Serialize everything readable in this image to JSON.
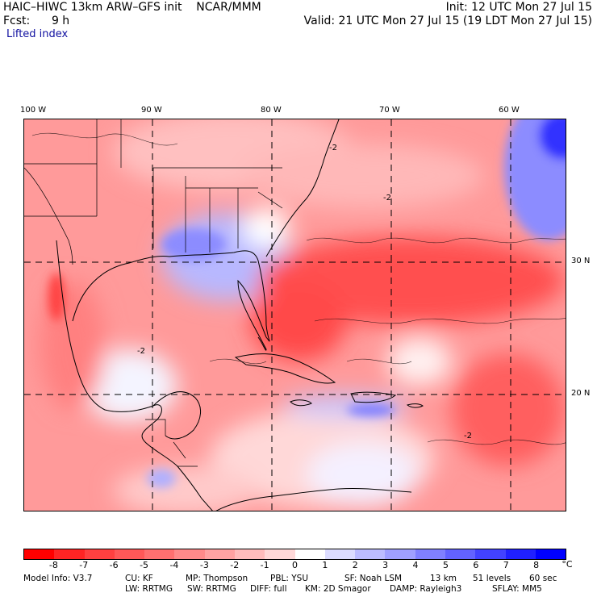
{
  "header": {
    "line1_left": "HAIC–HIWC 13km ARW–GFS init    NCAR/MMM",
    "line1_right": "Init: 12 UTC Mon 27 Jul 15",
    "line2_left": "Fcst:      9 h",
    "line2_right": "Valid: 21 UTC Mon 27 Jul 15 (19 LDT Mon 27 Jul 15)",
    "field_name": "Lifted index"
  },
  "map": {
    "longitude_labels": [
      "100 W",
      "90 W",
      "80 W",
      "70 W",
      "60 W"
    ],
    "latitude_labels": [
      "30 N",
      "20 N"
    ],
    "contour_label": "-2"
  },
  "colorbar": {
    "tick_labels": [
      "-8",
      "-7",
      "-6",
      "-5",
      "-4",
      "-3",
      "-2",
      "-1",
      "0",
      "1",
      "2",
      "3",
      "4",
      "5",
      "6",
      "7",
      "8"
    ],
    "units": "°C",
    "colors": [
      "#ff0000",
      "#ff2424",
      "#ff4040",
      "#ff5858",
      "#ff7070",
      "#ff8a8a",
      "#ffa2a2",
      "#ffbcbc",
      "#ffd8d8",
      "#ffffff",
      "#dcdcff",
      "#bcbcff",
      "#a0a0ff",
      "#8080ff",
      "#6262ff",
      "#4242ff",
      "#2020ff",
      "#0000ff"
    ]
  },
  "footer": {
    "model_info": "Model Info: V3.7",
    "cu": "CU: KF",
    "mp": "MP: Thompson",
    "pbl": "PBL: YSU",
    "sf": "SF: Noah LSM",
    "res": "13 km",
    "levels": "51 levels",
    "dt": "60 sec",
    "lw": "LW: RRTMG",
    "sw": "SW: RRTMG",
    "diff": "DIFF: full",
    "km": "KM: 2D Smagor",
    "damp": "DAMP: Rayleigh3",
    "sflay": "SFLAY: MM5"
  }
}
